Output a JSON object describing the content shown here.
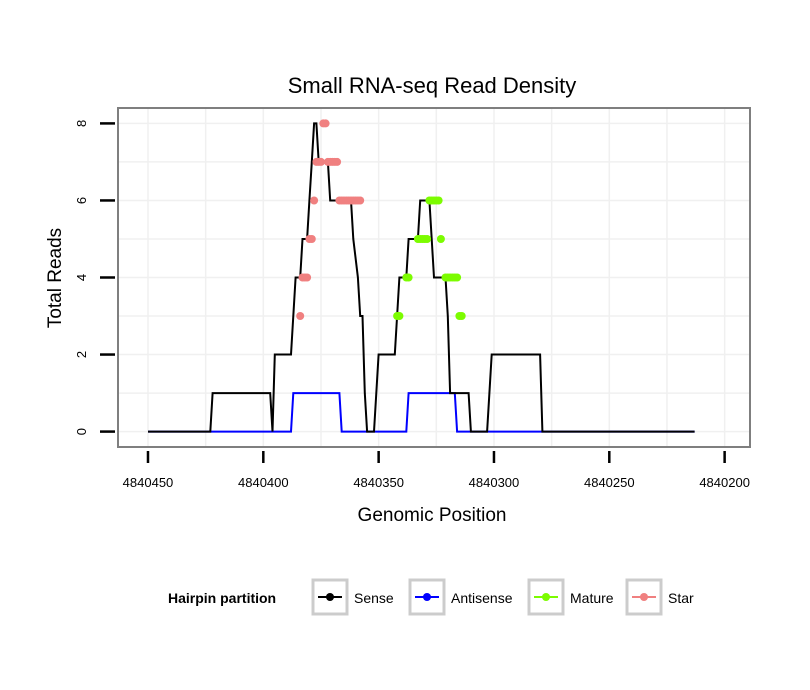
{
  "chart_data": {
    "type": "line",
    "title": "Small RNA-seq Read Density",
    "xlabel": "Genomic Position",
    "ylabel": "Total Reads",
    "xlim": [
      4840463,
      4840189
    ],
    "ylim": [
      -0.4,
      8.4
    ],
    "x_ticks": [
      4840450,
      4840400,
      4840350,
      4840300,
      4840250,
      4840200
    ],
    "x_tick_labels": [
      "4840450",
      "4840400",
      "4840350",
      "4840300",
      "4840250",
      "4840200"
    ],
    "y_ticks": [
      0,
      2,
      4,
      6,
      8
    ],
    "y_tick_labels": [
      "0",
      "2",
      "4",
      "6",
      "8"
    ],
    "grid": true,
    "legend": {
      "title": "Hairpin partition",
      "position": "bottom",
      "entries": [
        {
          "label": "Sense",
          "color": "#000000"
        },
        {
          "label": "Antisense",
          "color": "#0000ff"
        },
        {
          "label": "Mature",
          "color": "#7cfc00"
        },
        {
          "label": "Star",
          "color": "#f08080"
        }
      ]
    },
    "series": [
      {
        "name": "Sense",
        "color": "#000000",
        "points": [
          [
            4840450,
            0
          ],
          [
            4840423,
            0
          ],
          [
            4840422,
            1
          ],
          [
            4840397,
            1
          ],
          [
            4840396,
            0
          ],
          [
            4840395,
            2
          ],
          [
            4840388,
            2
          ],
          [
            4840387,
            3
          ],
          [
            4840386,
            4
          ],
          [
            4840384,
            4
          ],
          [
            4840383,
            5
          ],
          [
            4840381,
            5
          ],
          [
            4840380,
            6
          ],
          [
            4840379,
            7
          ],
          [
            4840378,
            8
          ],
          [
            4840377,
            8
          ],
          [
            4840376,
            7
          ],
          [
            4840372,
            7
          ],
          [
            4840371,
            6
          ],
          [
            4840362,
            6
          ],
          [
            4840361,
            5
          ],
          [
            4840359,
            4
          ],
          [
            4840358,
            3
          ],
          [
            4840357,
            3
          ],
          [
            4840356,
            1
          ],
          [
            4840355,
            0
          ],
          [
            4840352,
            0
          ],
          [
            4840351,
            1
          ],
          [
            4840350,
            2
          ],
          [
            4840343,
            2
          ],
          [
            4840342,
            3
          ],
          [
            4840341,
            4
          ],
          [
            4840338,
            4
          ],
          [
            4840337,
            5
          ],
          [
            4840333,
            5
          ],
          [
            4840332,
            6
          ],
          [
            4840328,
            6
          ],
          [
            4840327,
            5
          ],
          [
            4840326,
            4
          ],
          [
            4840321,
            4
          ],
          [
            4840320,
            3
          ],
          [
            4840319,
            1
          ],
          [
            4840311,
            1
          ],
          [
            4840310,
            0
          ],
          [
            4840303,
            0
          ],
          [
            4840302,
            1
          ],
          [
            4840301,
            2
          ],
          [
            4840280,
            2
          ],
          [
            4840279,
            0
          ],
          [
            4840213,
            0
          ]
        ]
      },
      {
        "name": "Antisense",
        "color": "#0000ff",
        "points": [
          [
            4840450,
            0
          ],
          [
            4840388,
            0
          ],
          [
            4840387,
            1
          ],
          [
            4840367,
            1
          ],
          [
            4840366,
            0
          ],
          [
            4840338,
            0
          ],
          [
            4840337,
            1
          ],
          [
            4840317,
            1
          ],
          [
            4840316,
            0
          ],
          [
            4840213,
            0
          ]
        ]
      },
      {
        "name": "Mature",
        "color": "#7cfc00",
        "points": [
          [
            4840342,
            3
          ],
          [
            4840341,
            3
          ],
          [
            4840338,
            4
          ],
          [
            4840337,
            4
          ],
          [
            4840333,
            5
          ],
          [
            4840332,
            5
          ],
          [
            4840331,
            5
          ],
          [
            4840330,
            5
          ],
          [
            4840329,
            5
          ],
          [
            4840328,
            6
          ],
          [
            4840327,
            6
          ],
          [
            4840326,
            6
          ],
          [
            4840325,
            6
          ],
          [
            4840324,
            6
          ],
          [
            4840323,
            5
          ],
          [
            4840321,
            4
          ],
          [
            4840320,
            4
          ],
          [
            4840319,
            4
          ],
          [
            4840318,
            4
          ],
          [
            4840317,
            4
          ],
          [
            4840316,
            4
          ],
          [
            4840315,
            3
          ],
          [
            4840314,
            3
          ]
        ]
      },
      {
        "name": "Star",
        "color": "#f08080",
        "points": [
          [
            4840384,
            3
          ],
          [
            4840383,
            4
          ],
          [
            4840382,
            4
          ],
          [
            4840381,
            4
          ],
          [
            4840380,
            5
          ],
          [
            4840379,
            5
          ],
          [
            4840378,
            6
          ],
          [
            4840377,
            7
          ],
          [
            4840376,
            7
          ],
          [
            4840375,
            7
          ],
          [
            4840374,
            8
          ],
          [
            4840373,
            8
          ],
          [
            4840372,
            7
          ],
          [
            4840371,
            7
          ],
          [
            4840370,
            7
          ],
          [
            4840369,
            7
          ],
          [
            4840368,
            7
          ],
          [
            4840367,
            6
          ],
          [
            4840366,
            6
          ],
          [
            4840365,
            6
          ],
          [
            4840364,
            6
          ],
          [
            4840363,
            6
          ],
          [
            4840362,
            6
          ],
          [
            4840361,
            6
          ],
          [
            4840360,
            6
          ],
          [
            4840359,
            6
          ],
          [
            4840358,
            6
          ]
        ]
      }
    ]
  }
}
